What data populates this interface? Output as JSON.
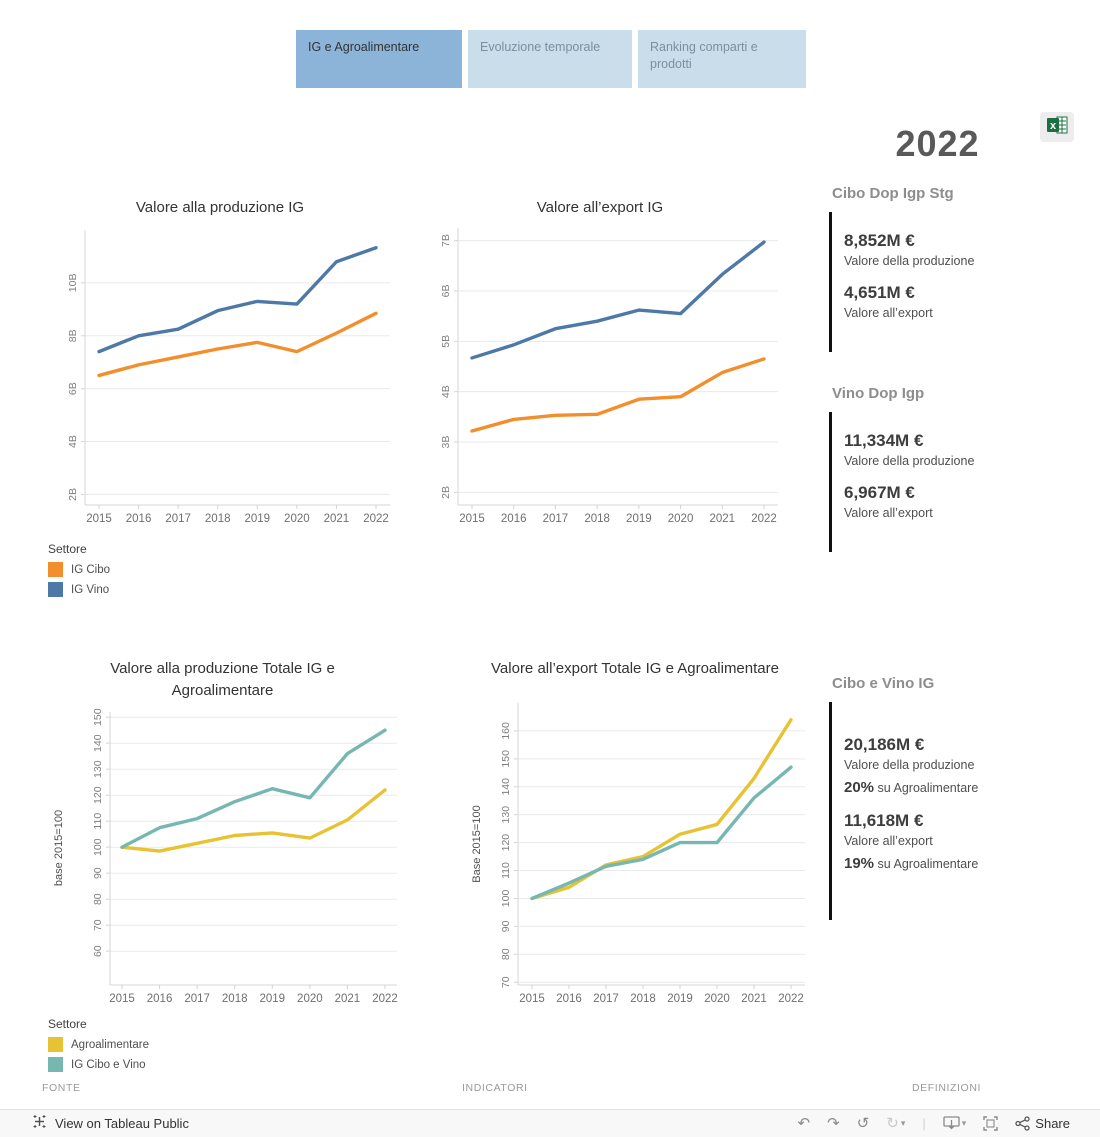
{
  "tabs": [
    {
      "label": "IG e Agroalimentare",
      "active": true
    },
    {
      "label": "Evoluzione temporale",
      "active": false
    },
    {
      "label": "Ranking comparti e prodotti",
      "active": false
    }
  ],
  "year_title": "2022",
  "export_button": {
    "icon": "excel-icon"
  },
  "panels": [
    {
      "header": "Cibo Dop Igp Stg",
      "stats": [
        {
          "value": "8,852M €",
          "label": "Valore della produzione"
        },
        {
          "value": "4,651M €",
          "label": "Valore all’export"
        }
      ]
    },
    {
      "header": "Vino Dop Igp",
      "stats": [
        {
          "value": "11,334M €",
          "label": "Valore della produzione"
        },
        {
          "value": "6,967M €",
          "label": "Valore all’export"
        }
      ]
    },
    {
      "header": "Cibo e Vino IG",
      "stats": [
        {
          "value": "20,186M €",
          "label": "Valore della produzione",
          "pct": "20%",
          "pct_label": "su Agroalimentare"
        },
        {
          "value": "11,618M €",
          "label": "Valore all’export",
          "pct": "19%",
          "pct_label": "su Agroalimentare"
        }
      ]
    }
  ],
  "legends": [
    {
      "title": "Settore",
      "items": [
        {
          "label": "IG Cibo",
          "color": "#f28e2b"
        },
        {
          "label": "IG Vino",
          "color": "#4e79a7"
        }
      ]
    },
    {
      "title": "Settore",
      "items": [
        {
          "label": "Agroalimentare",
          "color": "#e7c233"
        },
        {
          "label": "IG Cibo e Vino",
          "color": "#76b7b2"
        }
      ]
    }
  ],
  "footer_links": {
    "fonte": "FONTE",
    "indicatori": "INDICATORI",
    "definizioni": "DEFINIZIONI"
  },
  "tableau_bar": {
    "view_label": "View on Tableau Public",
    "share_label": "Share"
  },
  "colors": {
    "tab_active": "#8cb4d9",
    "tab_inactive": "#c9ddeb",
    "ig_cibo": "#f28e2b",
    "ig_vino": "#4e79a7",
    "agroalimentare": "#e7c233",
    "ig_cibo_e_vino": "#76b7b2",
    "excel_green": "#1d6f42"
  },
  "chart_data": [
    {
      "type": "line",
      "title": "Valore alla produzione IG",
      "unit": "B €",
      "x": [
        2015,
        2016,
        2017,
        2018,
        2019,
        2020,
        2021,
        2022
      ],
      "ylabel": "",
      "yticks": {
        "labels": [
          "2B",
          "4B",
          "6B",
          "8B",
          "10B"
        ],
        "values": [
          2,
          4,
          6,
          8,
          10
        ]
      },
      "ylim": [
        1.6,
        12.0
      ],
      "grid": true,
      "legend": "Settore (separate block)",
      "series": [
        {
          "name": "IG Cibo",
          "color": "#f28e2b",
          "values": [
            6.5,
            6.9,
            7.2,
            7.5,
            7.75,
            7.4,
            8.1,
            8.85
          ]
        },
        {
          "name": "IG Vino",
          "color": "#4e79a7",
          "values": [
            7.4,
            8.0,
            8.25,
            8.95,
            9.3,
            9.2,
            10.8,
            11.33
          ]
        }
      ]
    },
    {
      "type": "line",
      "title": "Valore all’export IG",
      "unit": "B €",
      "x": [
        2015,
        2016,
        2017,
        2018,
        2019,
        2020,
        2021,
        2022
      ],
      "ylabel": "",
      "yticks": {
        "labels": [
          "2B",
          "3B",
          "4B",
          "5B",
          "6B",
          "7B"
        ],
        "values": [
          2,
          3,
          4,
          5,
          6,
          7
        ]
      },
      "ylim": [
        1.75,
        7.25
      ],
      "grid": true,
      "series": [
        {
          "name": "IG Cibo",
          "color": "#f28e2b",
          "values": [
            3.22,
            3.45,
            3.53,
            3.55,
            3.85,
            3.9,
            4.38,
            4.65
          ]
        },
        {
          "name": "IG Vino",
          "color": "#4e79a7",
          "values": [
            4.67,
            4.93,
            5.25,
            5.4,
            5.62,
            5.55,
            6.33,
            6.97
          ]
        }
      ]
    },
    {
      "type": "line",
      "title": "Valore alla produzione Totale IG e Agroalimentare",
      "unit": "index",
      "x": [
        2015,
        2016,
        2017,
        2018,
        2019,
        2020,
        2021,
        2022
      ],
      "ylabel": "base 2015=100",
      "yticks": {
        "labels": [
          "60",
          "70",
          "80",
          "90",
          "100",
          "110",
          "120",
          "130",
          "140",
          "150"
        ],
        "values": [
          60,
          70,
          80,
          90,
          100,
          110,
          120,
          130,
          140,
          150
        ]
      },
      "ylim": [
        47,
        152
      ],
      "grid": true,
      "series": [
        {
          "name": "Agroalimentare",
          "color": "#e7c233",
          "values": [
            100,
            98.5,
            101.5,
            104.5,
            105.5,
            103.5,
            110.5,
            122
          ]
        },
        {
          "name": "IG Cibo e Vino",
          "color": "#76b7b2",
          "values": [
            100,
            107.5,
            111,
            117.5,
            122.5,
            119,
            136,
            145
          ]
        }
      ]
    },
    {
      "type": "line",
      "title": "Valore all’export Totale IG e Agroalimentare",
      "unit": "index",
      "x": [
        2015,
        2016,
        2017,
        2018,
        2019,
        2020,
        2021,
        2022
      ],
      "ylabel": "Base 2015=100",
      "yticks": {
        "labels": [
          "70",
          "80",
          "90",
          "100",
          "110",
          "120",
          "130",
          "140",
          "150",
          "160"
        ],
        "values": [
          70,
          80,
          90,
          100,
          110,
          120,
          130,
          140,
          150,
          160
        ]
      },
      "ylim": [
        69,
        170
      ],
      "grid": true,
      "series": [
        {
          "name": "Agroalimentare",
          "color": "#e7c233",
          "values": [
            100,
            104,
            112,
            115,
            123,
            126.5,
            143,
            164
          ]
        },
        {
          "name": "IG Cibo e Vino",
          "color": "#76b7b2",
          "values": [
            100,
            105.5,
            111.5,
            114,
            120,
            120,
            136,
            147
          ]
        }
      ]
    }
  ]
}
